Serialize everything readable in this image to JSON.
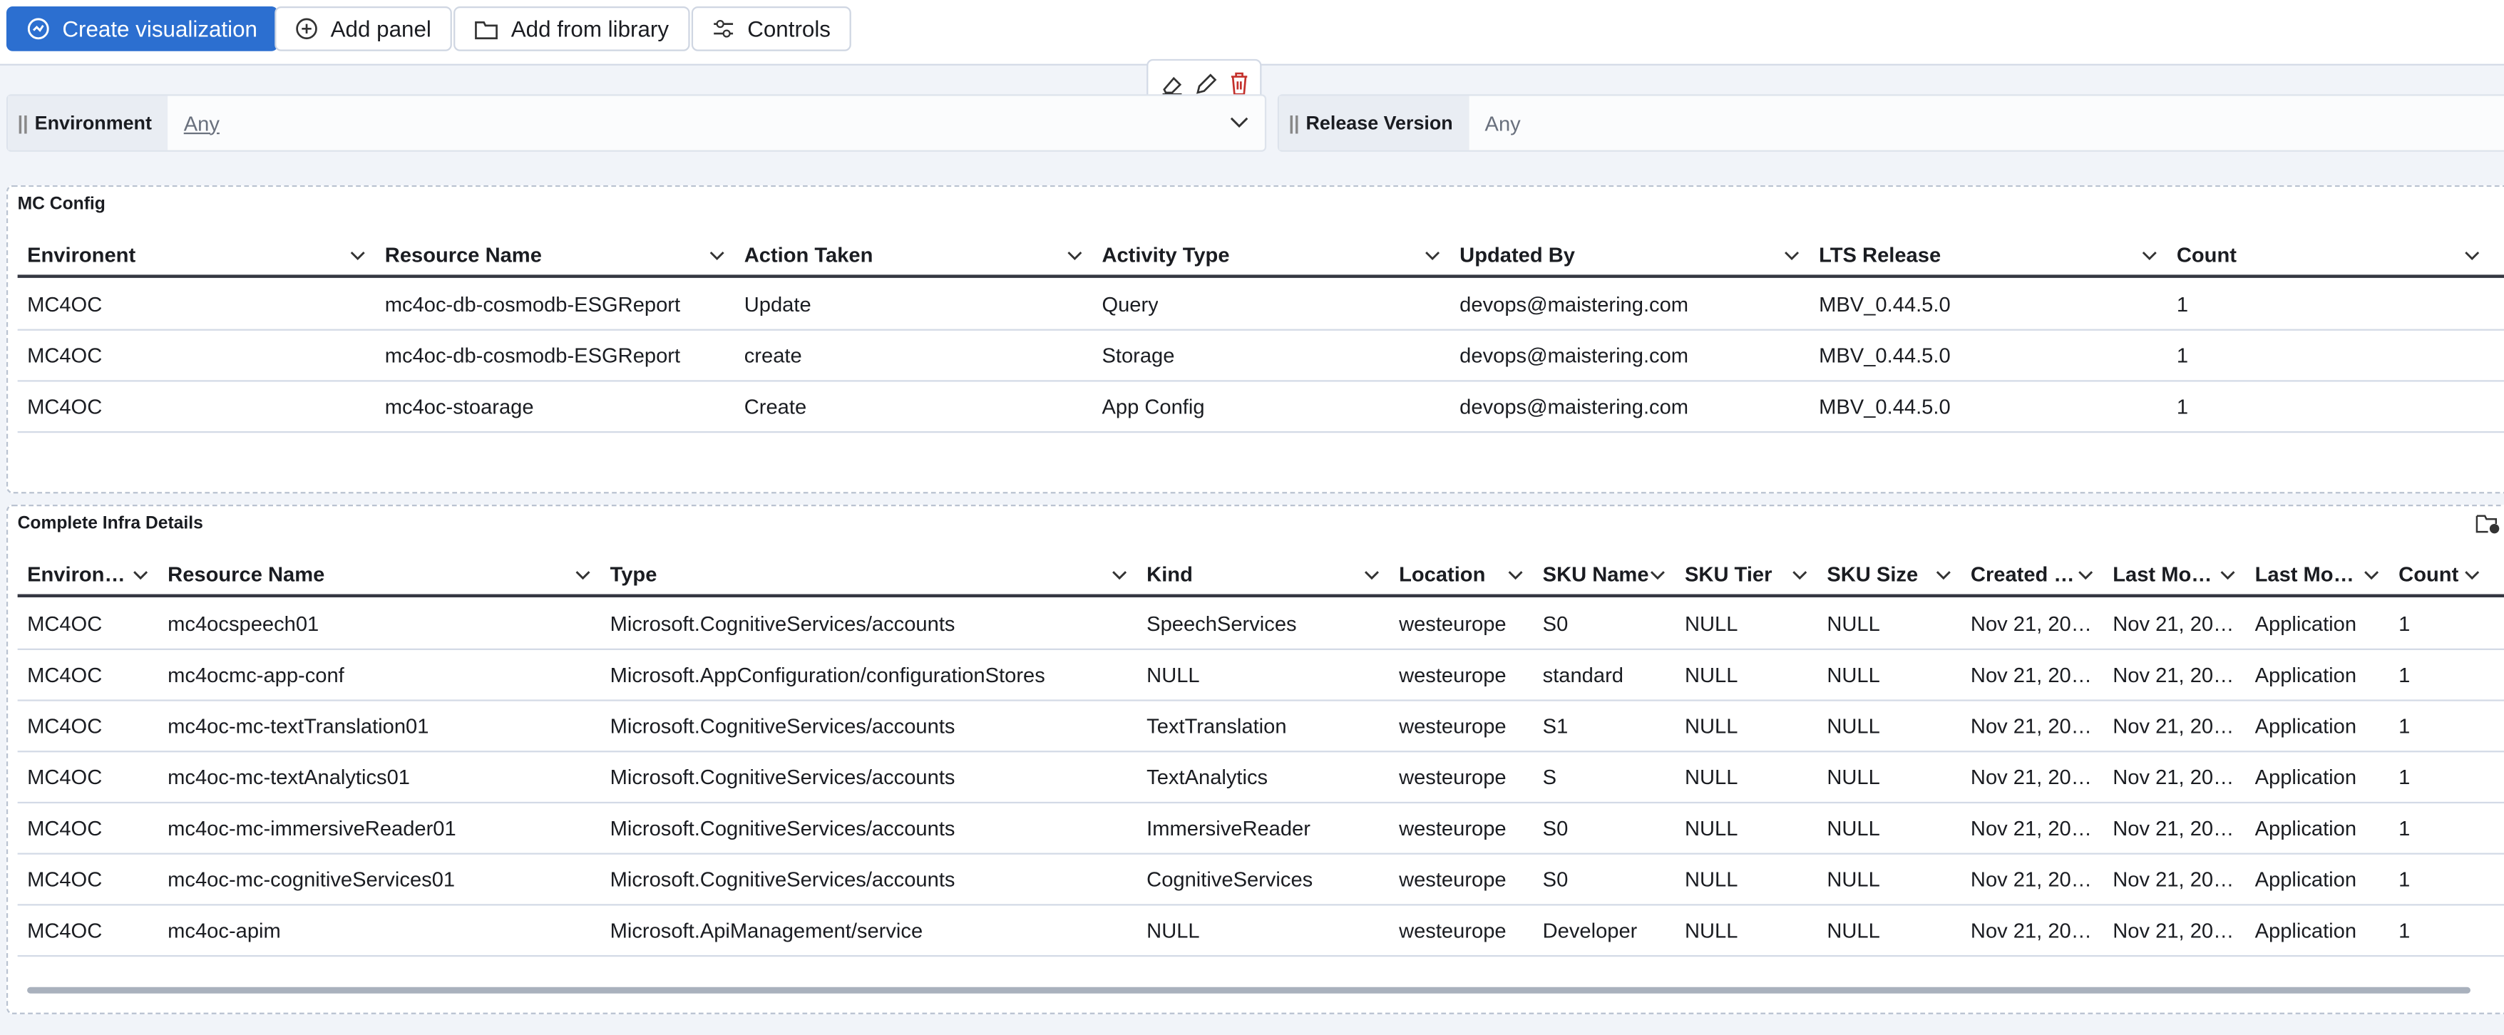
{
  "toolbar": {
    "create_visualization": "Create visualization",
    "add_panel": "Add panel",
    "add_from_library": "Add from library",
    "controls": "Controls"
  },
  "controls": [
    {
      "label": "Environment",
      "value": "Any"
    },
    {
      "label": "Release Version",
      "value": "Any"
    }
  ],
  "panels": [
    {
      "title": "MC Config",
      "columns": [
        "Environent",
        "Resource Name",
        "Action Taken",
        "Activity Type",
        "Updated By",
        "LTS Release",
        "Count"
      ],
      "rows": [
        [
          "MC4OC",
          "mc4oc-db-cosmodb-ESGReport",
          "Update",
          "Query",
          "devops@maistering.com",
          "MBV_0.44.5.0",
          "1"
        ],
        [
          "MC4OC",
          "mc4oc-db-cosmodb-ESGReport",
          "create",
          "Storage",
          "devops@maistering.com",
          "MBV_0.44.5.0",
          "1"
        ],
        [
          "MC4OC",
          "mc4oc-stoarage",
          "Create",
          "App Config",
          "devops@maistering.com",
          "MBV_0.44.5.0",
          "1"
        ]
      ]
    },
    {
      "title": "Complete Infra Details",
      "columns": [
        "Environ…",
        "Resource Name",
        "Type",
        "Kind",
        "Location",
        "SKU Name",
        "SKU Tier",
        "SKU Size",
        "Created …",
        "Last Mo…",
        "Last Mo…",
        "Count"
      ],
      "rows": [
        [
          "MC4OC",
          "mc4ocspeech01",
          "Microsoft.CognitiveServices/accounts",
          "SpeechServices",
          "westeurope",
          "S0",
          "NULL",
          "NULL",
          "Nov 21, 20…",
          "Nov 21, 20…",
          "Application",
          "1"
        ],
        [
          "MC4OC",
          "mc4ocmc-app-conf",
          "Microsoft.AppConfiguration/configurationStores",
          "NULL",
          "westeurope",
          "standard",
          "NULL",
          "NULL",
          "Nov 21, 20…",
          "Nov 21, 20…",
          "Application",
          "1"
        ],
        [
          "MC4OC",
          "mc4oc-mc-textTranslation01",
          "Microsoft.CognitiveServices/accounts",
          "TextTranslation",
          "westeurope",
          "S1",
          "NULL",
          "NULL",
          "Nov 21, 20…",
          "Nov 21, 20…",
          "Application",
          "1"
        ],
        [
          "MC4OC",
          "mc4oc-mc-textAnalytics01",
          "Microsoft.CognitiveServices/accounts",
          "TextAnalytics",
          "westeurope",
          "S",
          "NULL",
          "NULL",
          "Nov 21, 20…",
          "Nov 21, 20…",
          "Application",
          "1"
        ],
        [
          "MC4OC",
          "mc4oc-mc-immersiveReader01",
          "Microsoft.CognitiveServices/accounts",
          "ImmersiveReader",
          "westeurope",
          "S0",
          "NULL",
          "NULL",
          "Nov 21, 20…",
          "Nov 21, 20…",
          "Application",
          "1"
        ],
        [
          "MC4OC",
          "mc4oc-mc-cognitiveServices01",
          "Microsoft.CognitiveServices/accounts",
          "CognitiveServices",
          "westeurope",
          "S0",
          "NULL",
          "NULL",
          "Nov 21, 20…",
          "Nov 21, 20…",
          "Application",
          "1"
        ],
        [
          "MC4OC",
          "mc4oc-apim",
          "Microsoft.ApiManagement/service",
          "NULL",
          "westeurope",
          "Developer",
          "NULL",
          "NULL",
          "Nov 21, 20…",
          "Nov 21, 20…",
          "Application",
          "1"
        ]
      ]
    }
  ]
}
